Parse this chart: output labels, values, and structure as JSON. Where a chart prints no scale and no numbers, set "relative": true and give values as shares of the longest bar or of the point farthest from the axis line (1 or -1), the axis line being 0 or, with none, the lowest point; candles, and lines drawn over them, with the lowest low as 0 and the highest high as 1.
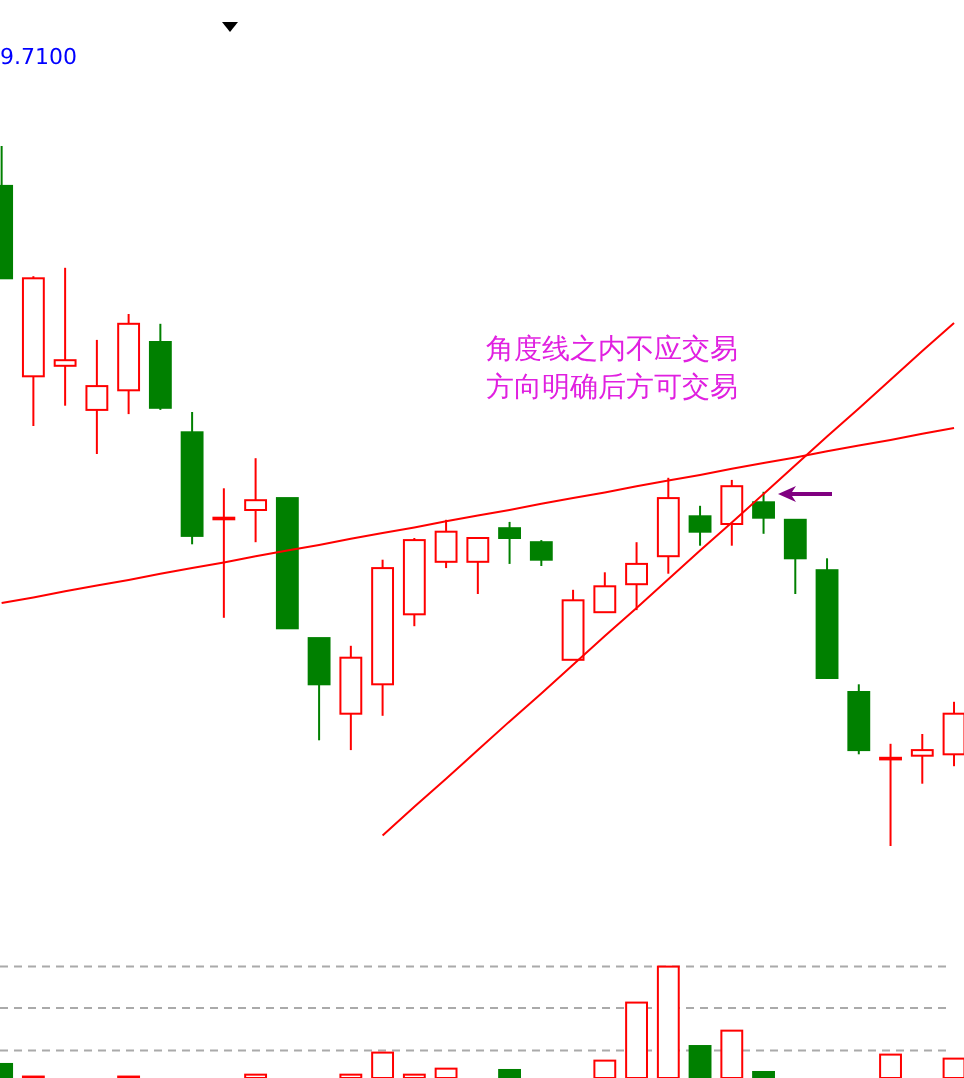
{
  "chart_data": [
    {
      "type": "candlestick",
      "relative": true,
      "categories": [
        null,
        null,
        null,
        null,
        null,
        null,
        null,
        null,
        null,
        null,
        null,
        null,
        null,
        null,
        null,
        null,
        null,
        null,
        null,
        null,
        null,
        null,
        null,
        null,
        null,
        null,
        null,
        null,
        null,
        null,
        null
      ],
      "ohlc": [
        [
          0.943,
          1,
          0.811,
          0.811
        ],
        [
          0.671,
          0.814,
          0.6,
          0.811
        ],
        [
          0.686,
          0.826,
          0.629,
          0.694
        ],
        [
          0.623,
          0.723,
          0.56,
          0.657
        ],
        [
          0.651,
          0.76,
          0.617,
          0.746
        ],
        [
          0.72,
          0.746,
          0.623,
          0.626
        ],
        [
          0.591,
          0.62,
          0.431,
          0.443
        ],
        [
          0.469,
          0.511,
          0.326,
          0.469
        ],
        [
          0.48,
          0.554,
          0.434,
          0.494
        ],
        [
          0.497,
          0.497,
          0.311,
          0.311
        ],
        [
          0.297,
          0.297,
          0.151,
          0.231
        ],
        [
          0.189,
          0.286,
          0.137,
          0.269
        ],
        [
          0.231,
          0.409,
          0.186,
          0.397
        ],
        [
          0.331,
          0.44,
          0.314,
          0.437
        ],
        [
          0.406,
          0.466,
          0.397,
          0.449
        ],
        [
          0.406,
          0.44,
          0.36,
          0.44
        ],
        [
          0.454,
          0.463,
          0.403,
          0.44
        ],
        [
          0.434,
          0.437,
          0.4,
          0.409
        ],
        [
          0.266,
          0.366,
          0.266,
          0.351
        ],
        [
          0.334,
          0.391,
          0.334,
          0.371
        ],
        [
          0.374,
          0.434,
          0.337,
          0.403
        ],
        [
          0.414,
          0.526,
          0.389,
          0.497
        ],
        [
          0.471,
          0.486,
          0.429,
          0.449
        ],
        [
          0.46,
          0.523,
          0.429,
          0.514
        ],
        [
          0.491,
          0.506,
          0.446,
          0.469
        ],
        [
          0.466,
          0.466,
          0.36,
          0.411
        ],
        [
          0.394,
          0.411,
          0.24,
          0.24
        ],
        [
          0.22,
          0.231,
          0.131,
          0.137
        ],
        [
          0.126,
          0.146,
          0,
          0.126
        ],
        [
          0.129,
          0.16,
          0.089,
          0.137
        ],
        [
          0.131,
          0.206,
          0.114,
          0.189
        ]
      ],
      "colors": [
        "#008000",
        "#ff0000",
        "#ff0000",
        "#ff0000",
        "#ff0000",
        "#008000",
        "#008000",
        "#ff0000",
        "#ff0000",
        "#008000",
        "#008000",
        "#ff0000",
        "#ff0000",
        "#ff0000",
        "#ff0000",
        "#ff0000",
        "#008000",
        "#008000",
        "#ff0000",
        "#ff0000",
        "#ff0000",
        "#ff0000",
        "#008000",
        "#ff0000",
        "#008000",
        "#008000",
        "#008000",
        "#008000",
        "#ff0000",
        "#ff0000",
        "#ff0000"
      ],
      "series": [
        {
          "type": "line",
          "color": "#ff0000",
          "values": [
            0.347,
            0.355,
            0.364,
            0.372,
            0.38,
            0.389,
            0.397,
            0.405,
            0.414,
            0.422,
            0.43,
            0.439,
            0.447,
            0.455,
            0.464,
            0.472,
            0.48,
            0.489,
            0.497,
            0.505,
            0.514,
            0.522,
            0.53,
            0.539,
            0.547,
            0.555,
            0.564,
            0.572,
            0.58,
            0.589,
            0.597
          ]
        },
        {
          "type": "line",
          "color": "#ff0000",
          "values": [
            null,
            null,
            null,
            null,
            null,
            null,
            null,
            null,
            null,
            null,
            null,
            null,
            0.015,
            0.056,
            0.096,
            0.137,
            0.178,
            0.218,
            0.259,
            0.3,
            0.34,
            0.381,
            0.422,
            0.462,
            0.503,
            0.544,
            0.585,
            0.625,
            0.666,
            0.707,
            0.747
          ]
        }
      ],
      "annotations": [
        "9.7100",
        "角度线之内不应交易",
        "方向明确后方可交易"
      ]
    },
    {
      "type": "bar",
      "relative": true,
      "categories": [
        null,
        null,
        null,
        null,
        null,
        null,
        null,
        null,
        null,
        null,
        null,
        null,
        null,
        null,
        null,
        null,
        null,
        null,
        null,
        null,
        null,
        null,
        null,
        null,
        null,
        null,
        null,
        null,
        null,
        null,
        null
      ],
      "values": [
        0.126,
        0.013,
        null,
        null,
        0.013,
        null,
        null,
        null,
        0.03,
        null,
        null,
        0.03,
        0.228,
        0.03,
        0.084,
        null,
        0.072,
        null,
        null,
        0.156,
        0.677,
        1,
        0.287,
        0.425,
        0.054,
        null,
        null,
        null,
        0.21,
        null,
        0.174
      ],
      "colors": [
        "#008000",
        "#ff0000",
        null,
        null,
        "#ff0000",
        null,
        null,
        null,
        "#ff0000",
        null,
        null,
        "#ff0000",
        "#ff0000",
        "#ff0000",
        "#ff0000",
        null,
        "#008000",
        null,
        null,
        "#ff0000",
        "#ff0000",
        "#ff0000",
        "#008000",
        "#ff0000",
        "#008000",
        null,
        null,
        null,
        "#ff0000",
        null,
        "#ff0000"
      ],
      "ref_lines": [
        {
          "axis": "y",
          "value": 1,
          "color": "#aaaaaa",
          "line_style": "dashed"
        },
        {
          "axis": "y",
          "value": 0.628,
          "color": "#aaaaaa",
          "line_style": "dashed"
        },
        {
          "axis": "y",
          "value": 0.246,
          "color": "#aaaaaa",
          "line_style": "dashed"
        }
      ]
    }
  ]
}
